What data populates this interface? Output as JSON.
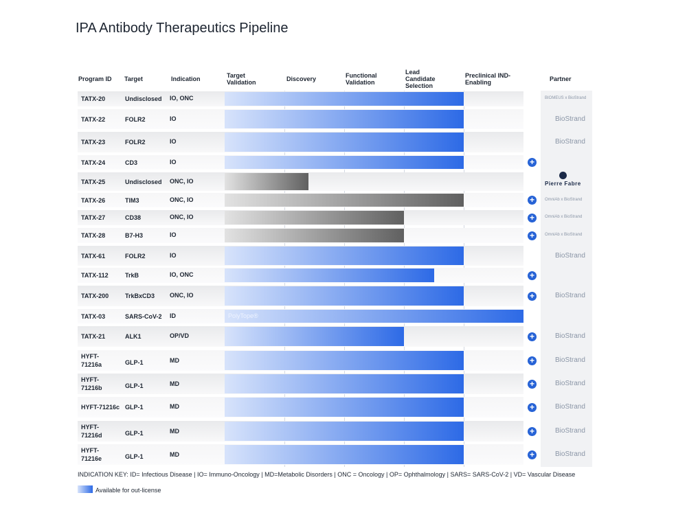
{
  "page": {
    "title": "IPA Antibody Therapeutics Pipeline"
  },
  "colors": {
    "accent": "#2d6ae6",
    "accent_light": "#d7e3fb",
    "gray_dark": "#606060",
    "gray_light": "#e2e2e2",
    "row_even": "#e9eaec",
    "row_odd": "#f6f6f7"
  },
  "chart_data": {
    "type": "table",
    "title": "IPA Antibody Therapeutics Pipeline",
    "columns": {
      "program": "Program ID",
      "target": "Target",
      "indication": "Indication",
      "partner": "Partner"
    },
    "stages": [
      "Target Validation",
      "Discovery",
      "Functional Validation",
      "Lead Candidate Selection",
      "Preclinical IND-Enabling"
    ],
    "rows": [
      {
        "id": "TATX-20",
        "target": "Undisclosed",
        "indication": "IO, ONC",
        "progress": 4,
        "style": "blue",
        "plus": false,
        "partner": "BIOMEUS x BioStrand"
      },
      {
        "id": "TATX-22",
        "target": "FOLR2",
        "indication": "IO",
        "progress": 4,
        "style": "blue",
        "plus": false,
        "partner": "BioStrand"
      },
      {
        "id": "TATX-23",
        "target": "FOLR2",
        "indication": "IO",
        "progress": 4,
        "style": "blue",
        "plus": false,
        "partner": "BioStrand"
      },
      {
        "id": "TATX-24",
        "target": "CD3",
        "indication": "IO",
        "progress": 4,
        "style": "blue",
        "plus": true,
        "partner": ""
      },
      {
        "id": "TATX-25",
        "target": "Undisclosed",
        "indication": "ONC, IO",
        "progress": 1.4,
        "style": "gray",
        "plus": false,
        "partner": "Pierre Fabre"
      },
      {
        "id": "TATX-26",
        "target": "TIM3",
        "indication": "ONC, IO",
        "progress": 4,
        "style": "gray",
        "plus": true,
        "partner": "OmniAb x BioStrand"
      },
      {
        "id": "TATX-27",
        "target": "CD38",
        "indication": "ONC, IO",
        "progress": 3,
        "style": "gray",
        "plus": true,
        "partner": "OmniAb x BioStrand"
      },
      {
        "id": "TATX-28",
        "target": "B7-H3",
        "indication": "IO",
        "progress": 3,
        "style": "gray",
        "plus": true,
        "partner": "OmniAb x BioStrand"
      },
      {
        "id": "TATX-61",
        "target": "FOLR2",
        "indication": "IO",
        "progress": 4,
        "style": "blue",
        "plus": false,
        "partner": "BioStrand"
      },
      {
        "id": "TATX-112",
        "target": "TrkB",
        "indication": "IO, ONC",
        "progress": 3.5,
        "style": "blue",
        "plus": true,
        "partner": ""
      },
      {
        "id": "TATX-200",
        "target": "TrkBxCD3",
        "indication": "ONC, IO",
        "progress": 4,
        "style": "blue",
        "plus": true,
        "partner": "BioStrand"
      },
      {
        "id": "TATX-03",
        "target": "SARS-CoV-2",
        "indication": "ID",
        "progress": 5,
        "style": "blue",
        "plus": false,
        "partner": "",
        "bar_label": "PolyTope®"
      },
      {
        "id": "TATX-21",
        "target": "ALK1",
        "indication": "OP/VD",
        "progress": 3,
        "style": "blue",
        "plus": true,
        "partner": "BioStrand"
      },
      {
        "id": "HYFT-71216a",
        "target": "GLP-1",
        "indication": "MD",
        "progress": 4,
        "style": "blue",
        "plus": true,
        "partner": "BioStrand"
      },
      {
        "id": "HYFT-71216b",
        "target": "GLP-1",
        "indication": "MD",
        "progress": 4,
        "style": "blue",
        "plus": true,
        "partner": "BioStrand"
      },
      {
        "id": "HYFT-71216c",
        "target": "GLP-1",
        "indication": "MD",
        "progress": 4,
        "style": "blue",
        "plus": true,
        "partner": "BioStrand"
      },
      {
        "id": "HYFT-71216d",
        "target": "GLP-1",
        "indication": "MD",
        "progress": 4,
        "style": "blue",
        "plus": true,
        "partner": "BioStrand"
      },
      {
        "id": "HYFT-71216e",
        "target": "GLP-1",
        "indication": "MD",
        "progress": 4,
        "style": "blue",
        "plus": true,
        "partner": "BioStrand"
      }
    ],
    "indication_key": "INDICATION KEY: ID= Infectious Disease | IO= Immuno-Oncology | MD=Metabolic Disorders | ONC = Oncology | OP= Ophthalmology | SARS= SARS-CoV-2 | VD= Vascular Disease",
    "legend": "Available for out-license"
  }
}
